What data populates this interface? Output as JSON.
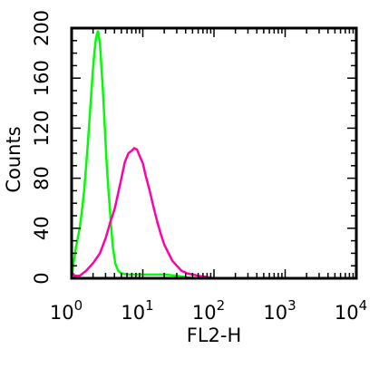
{
  "chart_data": {
    "type": "line",
    "xlabel": "FL2-H",
    "ylabel": "Counts",
    "x_scale": "log",
    "xlim": [
      1,
      10000
    ],
    "ylim": [
      0,
      200
    ],
    "x_ticks": [
      {
        "base": "10",
        "exp": "0",
        "value": 1
      },
      {
        "base": "10",
        "exp": "1",
        "value": 10
      },
      {
        "base": "10",
        "exp": "2",
        "value": 100
      },
      {
        "base": "10",
        "exp": "3",
        "value": 1000
      },
      {
        "base": "10",
        "exp": "4",
        "value": 10000
      }
    ],
    "y_ticks": [
      "0",
      "40",
      "80",
      "120",
      "160",
      "200"
    ],
    "y_tick_values": [
      0,
      40,
      80,
      120,
      160,
      200
    ],
    "grid": false,
    "series": [
      {
        "color": "#00ff00",
        "points": [
          [
            1.0,
            0
          ],
          [
            1.05,
            10
          ],
          [
            1.15,
            25
          ],
          [
            1.3,
            40
          ],
          [
            1.4,
            55
          ],
          [
            1.5,
            70
          ],
          [
            1.6,
            90
          ],
          [
            1.7,
            110
          ],
          [
            1.8,
            130
          ],
          [
            1.9,
            150
          ],
          [
            2.0,
            168
          ],
          [
            2.1,
            182
          ],
          [
            2.2,
            192
          ],
          [
            2.35,
            198
          ],
          [
            2.5,
            188
          ],
          [
            2.6,
            172
          ],
          [
            2.75,
            150
          ],
          [
            2.9,
            125
          ],
          [
            3.05,
            100
          ],
          [
            3.2,
            80
          ],
          [
            3.4,
            60
          ],
          [
            3.6,
            40
          ],
          [
            3.8,
            25
          ],
          [
            4.1,
            12
          ],
          [
            4.5,
            6
          ],
          [
            5.0,
            4
          ],
          [
            6.0,
            3
          ],
          [
            8.0,
            3
          ],
          [
            12,
            3
          ],
          [
            20,
            3
          ],
          [
            30,
            2
          ],
          [
            40,
            1
          ],
          [
            50,
            0
          ],
          [
            10000,
            0
          ]
        ]
      },
      {
        "color": "#ff00aa",
        "points": [
          [
            1.0,
            5
          ],
          [
            1.1,
            2
          ],
          [
            1.3,
            2
          ],
          [
            1.6,
            6
          ],
          [
            2.0,
            12
          ],
          [
            2.5,
            20
          ],
          [
            3.0,
            32
          ],
          [
            3.5,
            45
          ],
          [
            4.0,
            55
          ],
          [
            4.5,
            68
          ],
          [
            5.0,
            80
          ],
          [
            5.6,
            93
          ],
          [
            6.3,
            100
          ],
          [
            7.0,
            102
          ],
          [
            7.6,
            104
          ],
          [
            8.3,
            103
          ],
          [
            9.0,
            98
          ],
          [
            10,
            92
          ],
          [
            11,
            82
          ],
          [
            12.5,
            70
          ],
          [
            14,
            58
          ],
          [
            16,
            45
          ],
          [
            18,
            35
          ],
          [
            20,
            27
          ],
          [
            23,
            20
          ],
          [
            26,
            14
          ],
          [
            30,
            10
          ],
          [
            35,
            6
          ],
          [
            42,
            4
          ],
          [
            50,
            3
          ],
          [
            60,
            2
          ],
          [
            80,
            1
          ],
          [
            100,
            0
          ],
          [
            10000,
            0
          ]
        ]
      }
    ]
  }
}
